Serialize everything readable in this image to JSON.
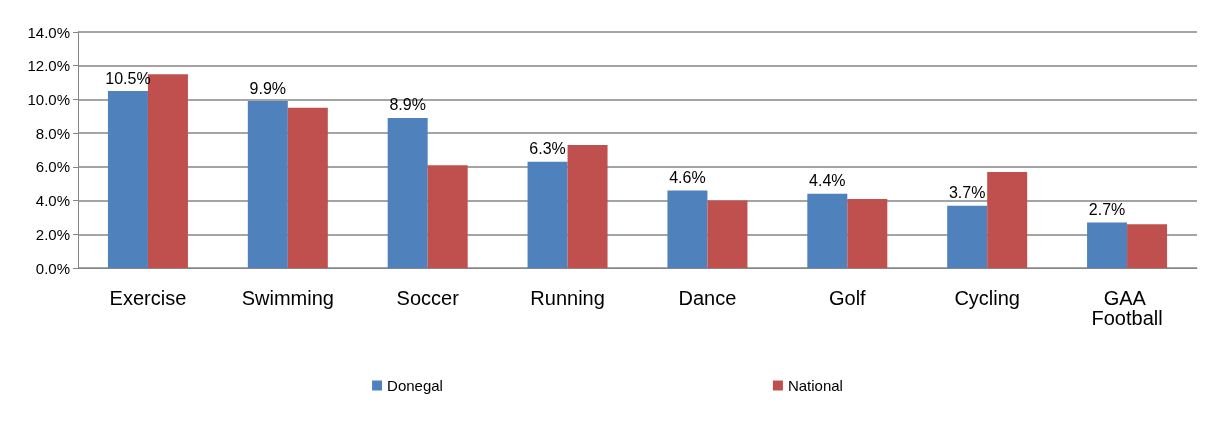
{
  "chart_data": {
    "type": "bar",
    "categories": [
      "Exercise",
      "Swimming",
      "Soccer",
      "Running",
      "Dance",
      "Golf",
      "Cycling",
      "GAA Football"
    ],
    "series": [
      {
        "name": "Donegal",
        "color": "#4f81bd",
        "values": [
          10.5,
          9.9,
          8.9,
          6.3,
          4.6,
          4.4,
          3.7,
          2.7
        ],
        "value_labels": [
          "10.5%",
          "9.9%",
          "8.9%",
          "6.3%",
          "4.6%",
          "4.4%",
          "3.7%",
          "2.7%"
        ]
      },
      {
        "name": "National",
        "color": "#c0504d",
        "values": [
          11.5,
          9.5,
          6.1,
          7.3,
          4.0,
          4.1,
          5.7,
          2.6
        ]
      }
    ],
    "ylim": [
      0,
      14
    ],
    "yticks": [
      {
        "value": 0,
        "label": "0.0%"
      },
      {
        "value": 2,
        "label": "2.0%"
      },
      {
        "value": 4,
        "label": "4.0%"
      },
      {
        "value": 6,
        "label": "6.0%"
      },
      {
        "value": 8,
        "label": "8.0%"
      },
      {
        "value": 10,
        "label": "10.0%"
      },
      {
        "value": 12,
        "label": "12.0%"
      },
      {
        "value": 14,
        "label": "14.0%"
      }
    ],
    "grid": "y",
    "legend": "bottom"
  }
}
